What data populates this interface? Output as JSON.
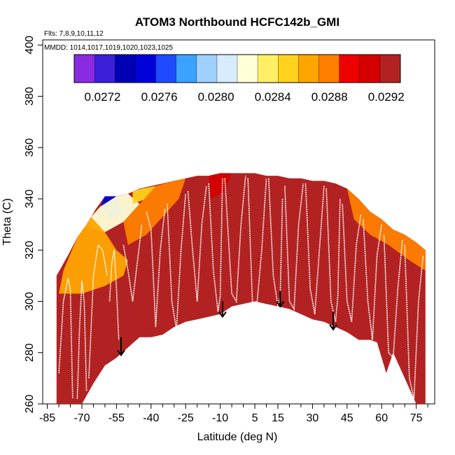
{
  "chart_data": {
    "type": "heatmap",
    "title": "ATOM3 Northbound HCFC142b_GMI",
    "subtitle_flights": "Flts: 7,8,9,10,11,12",
    "subtitle_dates": "MMDD: 1014,1017,1019,1020,1023,1025",
    "xlabel": "Latitude (deg N)",
    "ylabel": "Theta (C)",
    "xlim": [
      -87,
      83
    ],
    "ylim": [
      260,
      402
    ],
    "x_ticks": [
      -85,
      -70,
      -55,
      -40,
      -25,
      -10,
      5,
      15,
      30,
      45,
      60,
      75
    ],
    "x_tick_labels": [
      "-85",
      "-70",
      "-55",
      "-40",
      "-25",
      "-10",
      "5",
      "15",
      "30",
      "45",
      "60",
      "75"
    ],
    "y_ticks": [
      260,
      280,
      300,
      320,
      340,
      360,
      380,
      400
    ],
    "y_tick_labels": [
      "260",
      "280",
      "300",
      "320",
      "340",
      "360",
      "380",
      "400"
    ],
    "colorbar": {
      "ticks": [
        0.0272,
        0.0276,
        0.028,
        0.0284,
        0.0288,
        0.0292
      ],
      "tick_labels": [
        "0.0272",
        "0.0276",
        "0.0280",
        "0.0284",
        "0.0288",
        "0.0292"
      ],
      "range": [
        0.027,
        0.0293
      ],
      "colors": [
        "#8a2be2",
        "#3a1fd8",
        "#0000b4",
        "#0000d8",
        "#1e4bff",
        "#3ca2ff",
        "#9fd0ff",
        "#d8ecff",
        "#ffffd8",
        "#ffee66",
        "#ffd21e",
        "#ffa500",
        "#ff7f00",
        "#ee0000",
        "#d40000",
        "#b22222"
      ]
    },
    "curtain_top": [
      [
        -81,
        310
      ],
      [
        -76,
        318
      ],
      [
        -72,
        325
      ],
      [
        -68,
        330
      ],
      [
        -64,
        336
      ],
      [
        -60,
        341
      ],
      [
        -55,
        341
      ],
      [
        -50,
        342
      ],
      [
        -45,
        344
      ],
      [
        -40,
        345
      ],
      [
        -35,
        346
      ],
      [
        -30,
        347
      ],
      [
        -25,
        348
      ],
      [
        -20,
        349
      ],
      [
        -15,
        349
      ],
      [
        -10,
        350
      ],
      [
        -5,
        350
      ],
      [
        5,
        350
      ],
      [
        10,
        349
      ],
      [
        15,
        349
      ],
      [
        20,
        348
      ],
      [
        25,
        348
      ],
      [
        30,
        347
      ],
      [
        35,
        347
      ],
      [
        40,
        346
      ],
      [
        45,
        344
      ],
      [
        50,
        340
      ],
      [
        55,
        335
      ],
      [
        60,
        332
      ],
      [
        65,
        328
      ],
      [
        70,
        326
      ],
      [
        75,
        323
      ],
      [
        79,
        320
      ]
    ],
    "curtain_bottom": [
      [
        79,
        260
      ],
      [
        75,
        260
      ],
      [
        70,
        270
      ],
      [
        65,
        280
      ],
      [
        62,
        272
      ],
      [
        58,
        284
      ],
      [
        55,
        285
      ],
      [
        50,
        285
      ],
      [
        45,
        288
      ],
      [
        40,
        290
      ],
      [
        35,
        292
      ],
      [
        30,
        293
      ],
      [
        25,
        295
      ],
      [
        20,
        297
      ],
      [
        15,
        298
      ],
      [
        10,
        299
      ],
      [
        5,
        300
      ],
      [
        -5,
        298
      ],
      [
        -10,
        295
      ],
      [
        -15,
        294
      ],
      [
        -20,
        293
      ],
      [
        -25,
        292
      ],
      [
        -30,
        290
      ],
      [
        -35,
        287
      ],
      [
        -40,
        286
      ],
      [
        -45,
        286
      ],
      [
        -50,
        282
      ],
      [
        -55,
        278
      ],
      [
        -60,
        275
      ],
      [
        -65,
        268
      ],
      [
        -70,
        260
      ],
      [
        -81,
        260
      ]
    ],
    "color_zones": [
      {
        "value": 0.02745,
        "poly": [
          [
            -60,
            341
          ],
          [
            -55,
            341
          ],
          [
            -52,
            334
          ],
          [
            -58,
            332
          ],
          [
            -62,
            337
          ]
        ]
      },
      {
        "value": 0.02815,
        "poly": [
          [
            -66,
            333
          ],
          [
            -62,
            337
          ],
          [
            -55,
            341
          ],
          [
            -50,
            342
          ],
          [
            -45,
            338
          ],
          [
            -52,
            331
          ],
          [
            -60,
            327
          ],
          [
            -68,
            329
          ]
        ]
      },
      {
        "value": 0.02855,
        "poly": [
          [
            -48,
            343
          ],
          [
            -44,
            344
          ],
          [
            -38,
            345
          ],
          [
            -42,
            340
          ],
          [
            -48,
            338
          ]
        ]
      },
      {
        "value": 0.0287,
        "poly": [
          [
            -78,
            312
          ],
          [
            -72,
            325
          ],
          [
            -66,
            333
          ],
          [
            -60,
            327
          ],
          [
            -55,
            320
          ],
          [
            -50,
            316
          ],
          [
            -52,
            310
          ],
          [
            -60,
            306
          ],
          [
            -70,
            303
          ],
          [
            -80,
            303
          ]
        ]
      },
      {
        "value": 0.02885,
        "poly": [
          [
            -52,
            331
          ],
          [
            -45,
            338
          ],
          [
            -38,
            345
          ],
          [
            -30,
            347
          ],
          [
            -25,
            348
          ],
          [
            -28,
            340
          ],
          [
            -35,
            333
          ],
          [
            -42,
            326
          ],
          [
            -50,
            322
          ]
        ]
      },
      {
        "value": 0.02885,
        "poly": [
          [
            45,
            344
          ],
          [
            50,
            340
          ],
          [
            55,
            335
          ],
          [
            60,
            332
          ],
          [
            65,
            328
          ],
          [
            70,
            326
          ],
          [
            75,
            323
          ],
          [
            79,
            320
          ],
          [
            79,
            312
          ],
          [
            72,
            316
          ],
          [
            63,
            322
          ],
          [
            55,
            326
          ],
          [
            48,
            332
          ]
        ]
      },
      {
        "value": 0.02905,
        "poly": [
          [
            -15,
            349
          ],
          [
            -10,
            350
          ],
          [
            -5,
            350
          ],
          [
            -8,
            343
          ],
          [
            -14,
            340
          ]
        ]
      }
    ],
    "flight_tracks": [
      {
        "x": [
          -80,
          -78,
          -76,
          -75,
          -74
        ],
        "y": [
          272,
          300,
          309,
          305,
          262
        ]
      },
      {
        "x": [
          -72,
          -71,
          -70,
          -69,
          -68
        ],
        "y": [
          262,
          290,
          308,
          300,
          265
        ]
      },
      {
        "x": [
          -67,
          -65,
          -63,
          -61,
          -59
        ],
        "y": [
          270,
          310,
          322,
          320,
          310
        ]
      },
      {
        "x": [
          -58,
          -57,
          -56,
          -55,
          -54
        ],
        "y": [
          300,
          315,
          320,
          305,
          285
        ]
      },
      {
        "x": [
          -52,
          -50,
          -48,
          -46,
          -44
        ],
        "y": [
          322,
          312,
          300,
          315,
          330
        ]
      },
      {
        "x": [
          -42,
          -40,
          -38,
          -36,
          -34
        ],
        "y": [
          335,
          328,
          290,
          320,
          336
        ]
      },
      {
        "x": [
          -33,
          -31,
          -29,
          -27,
          -25
        ],
        "y": [
          338,
          300,
          289,
          320,
          342
        ]
      },
      {
        "x": [
          -24,
          -22,
          -20,
          -18,
          -16
        ],
        "y": [
          343,
          320,
          300,
          330,
          345
        ]
      },
      {
        "x": [
          -15,
          -13,
          -11,
          -10,
          -9
        ],
        "y": [
          346,
          312,
          296,
          302,
          348
        ]
      },
      {
        "x": [
          -8,
          -5,
          -3,
          -1,
          1
        ],
        "y": [
          348,
          303,
          300,
          330,
          349
        ]
      },
      {
        "x": [
          2,
          4,
          6,
          8,
          10
        ],
        "y": [
          348,
          298,
          300,
          320,
          348
        ]
      },
      {
        "x": [
          11,
          13,
          15,
          16,
          17
        ],
        "y": [
          348,
          310,
          298,
          302,
          340
        ]
      },
      {
        "x": [
          18,
          20,
          22,
          24,
          26
        ],
        "y": [
          345,
          300,
          297,
          330,
          346
        ]
      },
      {
        "x": [
          27,
          29,
          31,
          33,
          35
        ],
        "y": [
          346,
          305,
          295,
          320,
          345
        ]
      },
      {
        "x": [
          36,
          38,
          40,
          41,
          42
        ],
        "y": [
          344,
          300,
          292,
          302,
          340
        ]
      },
      {
        "x": [
          43,
          45,
          47,
          49,
          51
        ],
        "y": [
          338,
          300,
          292,
          322,
          334
        ]
      },
      {
        "x": [
          52,
          54,
          56,
          58,
          60
        ],
        "y": [
          332,
          300,
          285,
          318,
          330
        ]
      },
      {
        "x": [
          61,
          63,
          65,
          67,
          69
        ],
        "y": [
          326,
          280,
          278,
          305,
          324
        ]
      },
      {
        "x": [
          70,
          72,
          74,
          76,
          78
        ],
        "y": [
          322,
          270,
          262,
          300,
          318
        ]
      }
    ],
    "arrows": [
      {
        "x": -53,
        "y_start": 286,
        "y_end": 279
      },
      {
        "x": -9,
        "y_start": 300,
        "y_end": 294
      },
      {
        "x": 16,
        "y_start": 304,
        "y_end": 298
      },
      {
        "x": 39,
        "y_start": 296,
        "y_end": 289
      }
    ],
    "grid": false,
    "legend_placement": "top-center colorbar"
  }
}
